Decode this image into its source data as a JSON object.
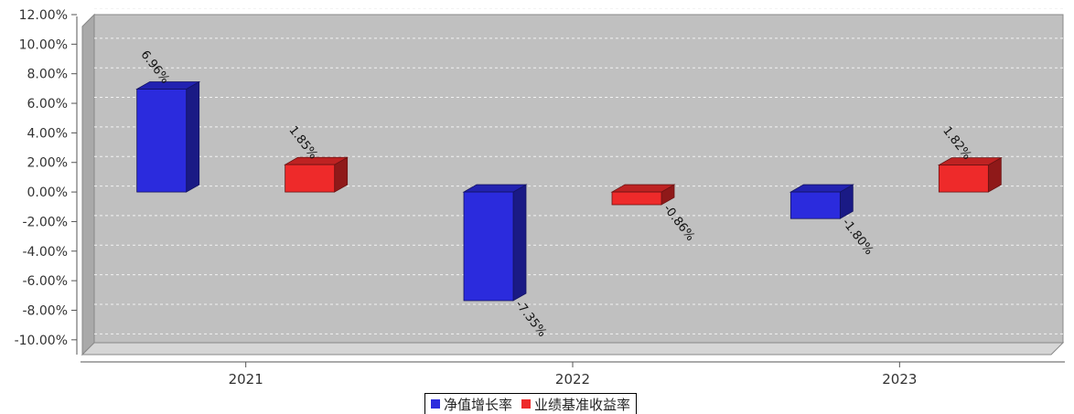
{
  "chart_data": {
    "type": "bar",
    "categories": [
      "2021",
      "2022",
      "2023"
    ],
    "series": [
      {
        "name": "净值增长率",
        "color": "#2b2bdd",
        "values": [
          6.96,
          -7.35,
          -1.8
        ],
        "labels": [
          "6.96%",
          "-7.35%",
          "-1.80%"
        ]
      },
      {
        "name": "业绩基准收益率",
        "color": "#ee2a2a",
        "values": [
          1.85,
          -0.86,
          1.82
        ],
        "labels": [
          "1.85%",
          "-0.86%",
          "1.82%"
        ]
      }
    ],
    "ylim": [
      -11,
      12
    ],
    "yticks": [
      12,
      10,
      8,
      6,
      4,
      2,
      0,
      -2,
      -4,
      -6,
      -8,
      -10
    ],
    "ytick_labels": [
      "12.00%",
      "10.00%",
      "8.00%",
      "6.00%",
      "4.00%",
      "2.00%",
      "0.00%",
      "-2.00%",
      "-4.00%",
      "-6.00%",
      "-8.00%",
      "-10.00%"
    ],
    "grid": true,
    "legend_position": "bottom",
    "title": "",
    "xlabel": "",
    "ylabel": ""
  },
  "legend": {
    "series1": "净值增长率",
    "series2": "业绩基准收益率",
    "series1_color": "#2b2bdd",
    "series2_color": "#ee2a2a"
  }
}
